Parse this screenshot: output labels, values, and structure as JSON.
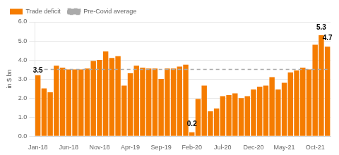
{
  "chart_data": {
    "type": "bar",
    "ylabel": "in $ bn",
    "categories": [
      "Jan-18",
      null,
      null,
      null,
      null,
      "Jun-18",
      null,
      null,
      null,
      null,
      "Nov-18",
      null,
      null,
      null,
      null,
      "Apr-19",
      null,
      null,
      null,
      null,
      "Sep-19",
      null,
      null,
      null,
      null,
      "Feb-20",
      null,
      null,
      null,
      null,
      "Jul-20",
      null,
      null,
      null,
      null,
      "Dec-20",
      null,
      null,
      null,
      null,
      "May-21",
      null,
      null,
      null,
      null,
      "Oct-21",
      null,
      null
    ],
    "series": [
      {
        "name": "Trade deficit",
        "type": "bar",
        "color": "#F57C00",
        "values": [
          3.2,
          2.5,
          2.3,
          3.7,
          3.6,
          3.5,
          3.5,
          3.5,
          3.55,
          3.95,
          4.0,
          4.45,
          4.1,
          4.2,
          2.65,
          3.3,
          3.7,
          3.6,
          3.55,
          3.55,
          3.0,
          3.55,
          3.55,
          3.65,
          3.75,
          0.2,
          1.95,
          2.65,
          1.3,
          1.45,
          2.1,
          2.15,
          2.25,
          2.0,
          2.1,
          2.45,
          2.6,
          2.65,
          3.1,
          2.45,
          2.8,
          3.35,
          3.45,
          3.6,
          3.5,
          4.8,
          5.3,
          4.7
        ]
      },
      {
        "name": "Pre-Covid average",
        "type": "line",
        "line_style": "dashed",
        "color": "#aaaaaa",
        "values": [
          3.5,
          3.5,
          3.5,
          3.5,
          3.5,
          3.5,
          3.5,
          3.5,
          3.5,
          3.5,
          3.5,
          3.5,
          3.5,
          3.5,
          3.5,
          3.5,
          3.5,
          3.5,
          3.5,
          3.5,
          3.5,
          3.5,
          3.5,
          3.5,
          3.5,
          3.5,
          3.5,
          3.5,
          3.5,
          3.5,
          3.5,
          3.5,
          3.5,
          3.5,
          3.5,
          3.5,
          3.5,
          3.5,
          3.5,
          3.5,
          3.5,
          3.5,
          3.5,
          3.5,
          3.5,
          3.5,
          3.5,
          3.5
        ]
      }
    ],
    "ylim": [
      0,
      6.0
    ],
    "yticks": [
      {
        "value": 0,
        "label": "0.0"
      },
      {
        "value": 1,
        "label": "1.0"
      },
      {
        "value": 2,
        "label": "2.0"
      },
      {
        "value": 3,
        "label": "3.0"
      },
      {
        "value": 4,
        "label": "4.0"
      },
      {
        "value": 5,
        "label": "5.0"
      },
      {
        "value": 6,
        "label": "6.0"
      }
    ],
    "grid": true,
    "legend": "upper left",
    "annotations": [
      {
        "text": "3.5",
        "x": 0,
        "y": 3.25
      },
      {
        "text": "0.2",
        "x": 25,
        "y": 0.45
      },
      {
        "text": "5.3",
        "x": 46,
        "y": 5.52
      },
      {
        "text": "4.7",
        "x": 47,
        "y": 4.95
      }
    ]
  }
}
